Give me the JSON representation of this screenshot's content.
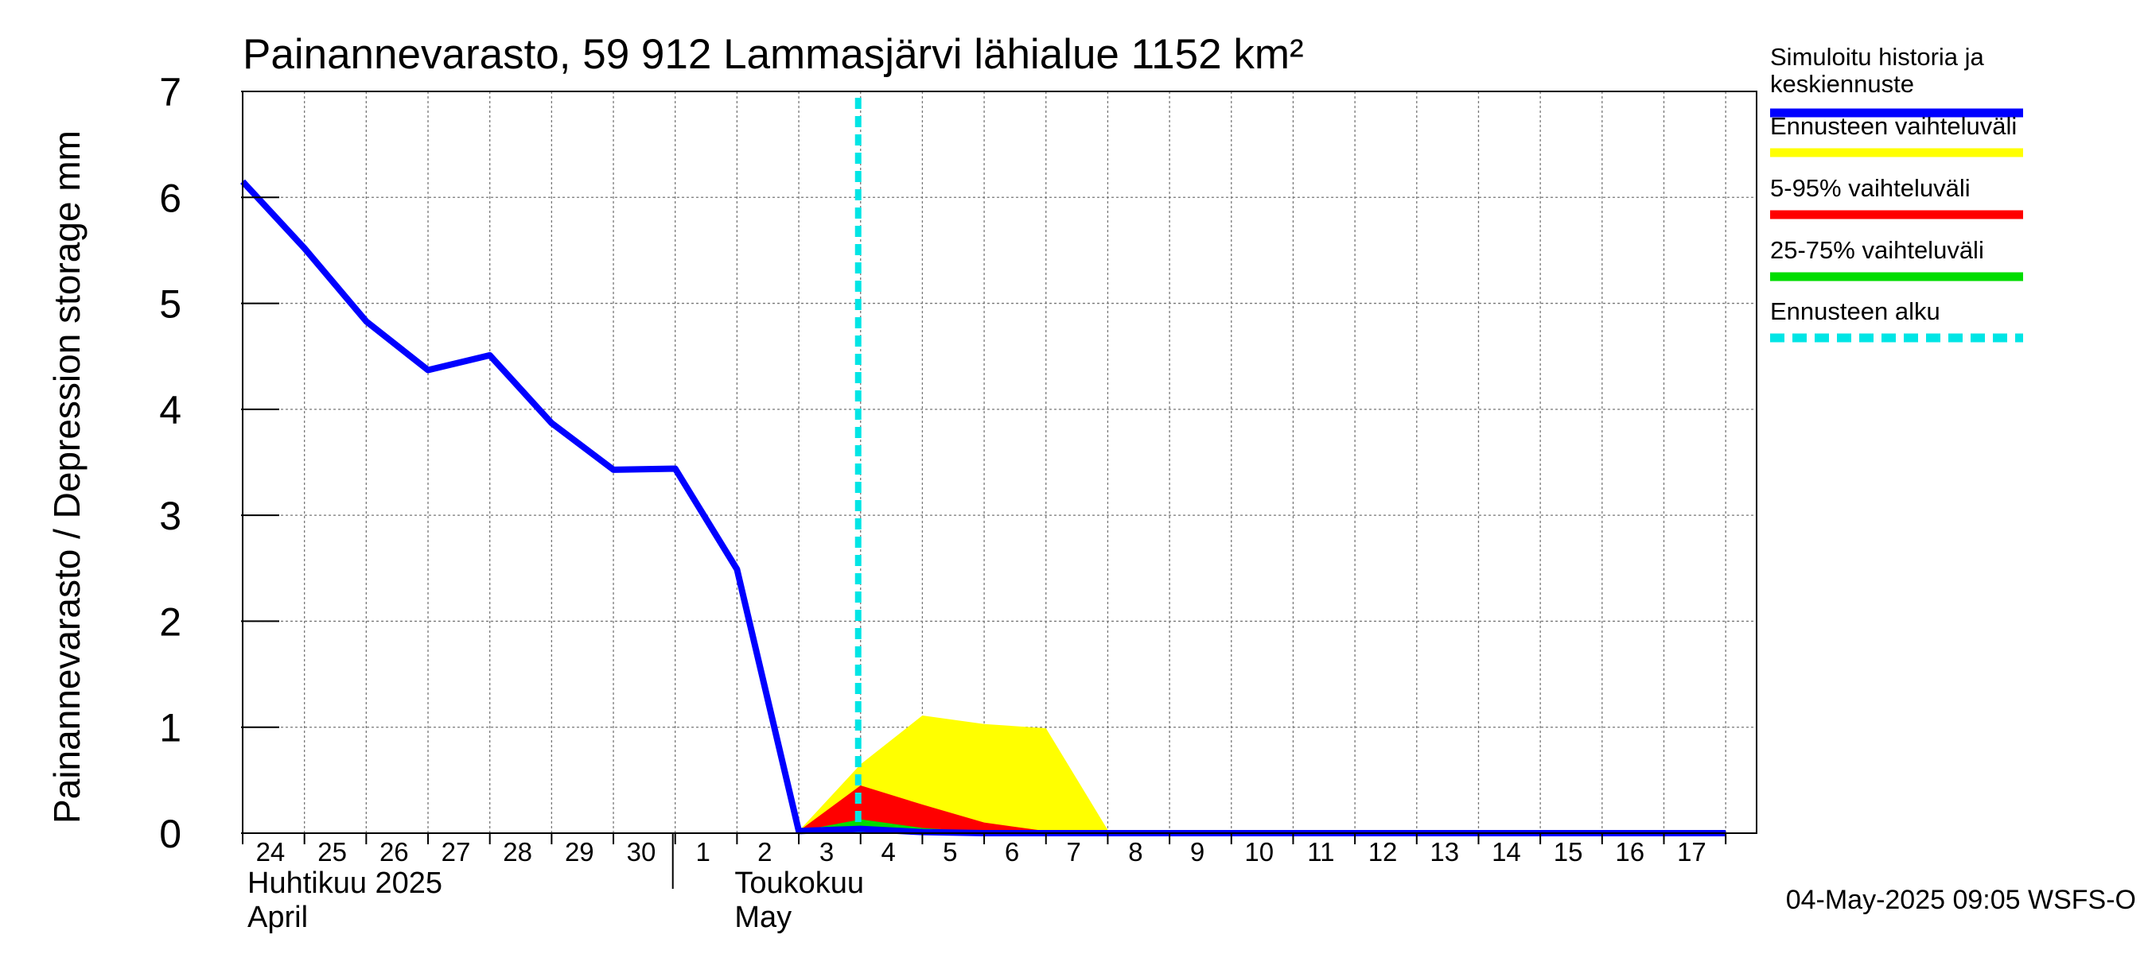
{
  "chart_data": {
    "type": "area",
    "title": "Painannevarasto, 59 912 Lammasjärvi lähialue 1152 km²",
    "ylabel": "Painannevarasto / Depression storage    mm",
    "ylim": [
      0,
      7
    ],
    "yticks": [
      "0",
      "1",
      "2",
      "3",
      "4",
      "5",
      "6",
      "7"
    ],
    "x_day_labels": [
      "24",
      "25",
      "26",
      "27",
      "28",
      "29",
      "30",
      "1",
      "2",
      "3",
      "4",
      "5",
      "6",
      "7",
      "8",
      "9",
      "10",
      "11",
      "12",
      "13",
      "14",
      "15",
      "16",
      "17"
    ],
    "month_labels": [
      {
        "fi": "Huhtikuu  2025",
        "en": "April"
      },
      {
        "fi": "Toukokuu",
        "en": "May"
      }
    ],
    "forecast_start_day_index": 10,
    "series": [
      {
        "name": "Simuloitu historia ja keskiennuste",
        "color": "#0000ff",
        "values": [
          6.15,
          5.52,
          4.83,
          4.37,
          4.51,
          3.87,
          3.43,
          3.44,
          2.49,
          0.02,
          0.04,
          0.01,
          0.0,
          0.0,
          0.0,
          0.0,
          0.0,
          0.0,
          0.0,
          0.0,
          0.0,
          0.0,
          0.0,
          0.0,
          0.0
        ]
      }
    ],
    "bands": [
      {
        "name": "Ennusteen vaihteluväli",
        "color": "#ffff00",
        "x": [
          9,
          10,
          11,
          12,
          13,
          14,
          15
        ],
        "upper": [
          0.02,
          0.65,
          1.11,
          1.03,
          0.99,
          0.03,
          0.0
        ],
        "lower": [
          0.0,
          0.0,
          0.0,
          0.0,
          0.0,
          0.0,
          0.0
        ]
      },
      {
        "name": "5-95% vaihteluväli",
        "color": "#ff0000",
        "x": [
          9,
          10,
          11,
          12,
          13,
          14
        ],
        "upper": [
          0.02,
          0.45,
          0.27,
          0.1,
          0.02,
          0.0
        ],
        "lower": [
          0.0,
          0.0,
          0.0,
          0.0,
          0.0,
          0.0
        ]
      },
      {
        "name": "25-75% vaihteluväli",
        "color": "#00dd00",
        "x": [
          9,
          10,
          11,
          12,
          13
        ],
        "upper": [
          0.02,
          0.13,
          0.05,
          0.01,
          0.0
        ],
        "lower": [
          0.0,
          0.0,
          0.0,
          0.0,
          0.0
        ]
      }
    ],
    "legend": [
      {
        "label": "Simuloitu historia ja keskiennuste",
        "color": "#0000ff",
        "style": "solid"
      },
      {
        "label": "Ennusteen vaihteluväli",
        "color": "#ffff00",
        "style": "solid"
      },
      {
        "label": "5-95% vaihteluväli",
        "color": "#ff0000",
        "style": "solid"
      },
      {
        "label": "25-75% vaihteluväli",
        "color": "#00dd00",
        "style": "solid"
      },
      {
        "label": "Ennusteen alku",
        "color": "#00e5e5",
        "style": "dashed"
      }
    ],
    "grid": true,
    "legend_position": "right"
  },
  "footer": {
    "timestamp": "04-May-2025 09:05 WSFS-O"
  }
}
